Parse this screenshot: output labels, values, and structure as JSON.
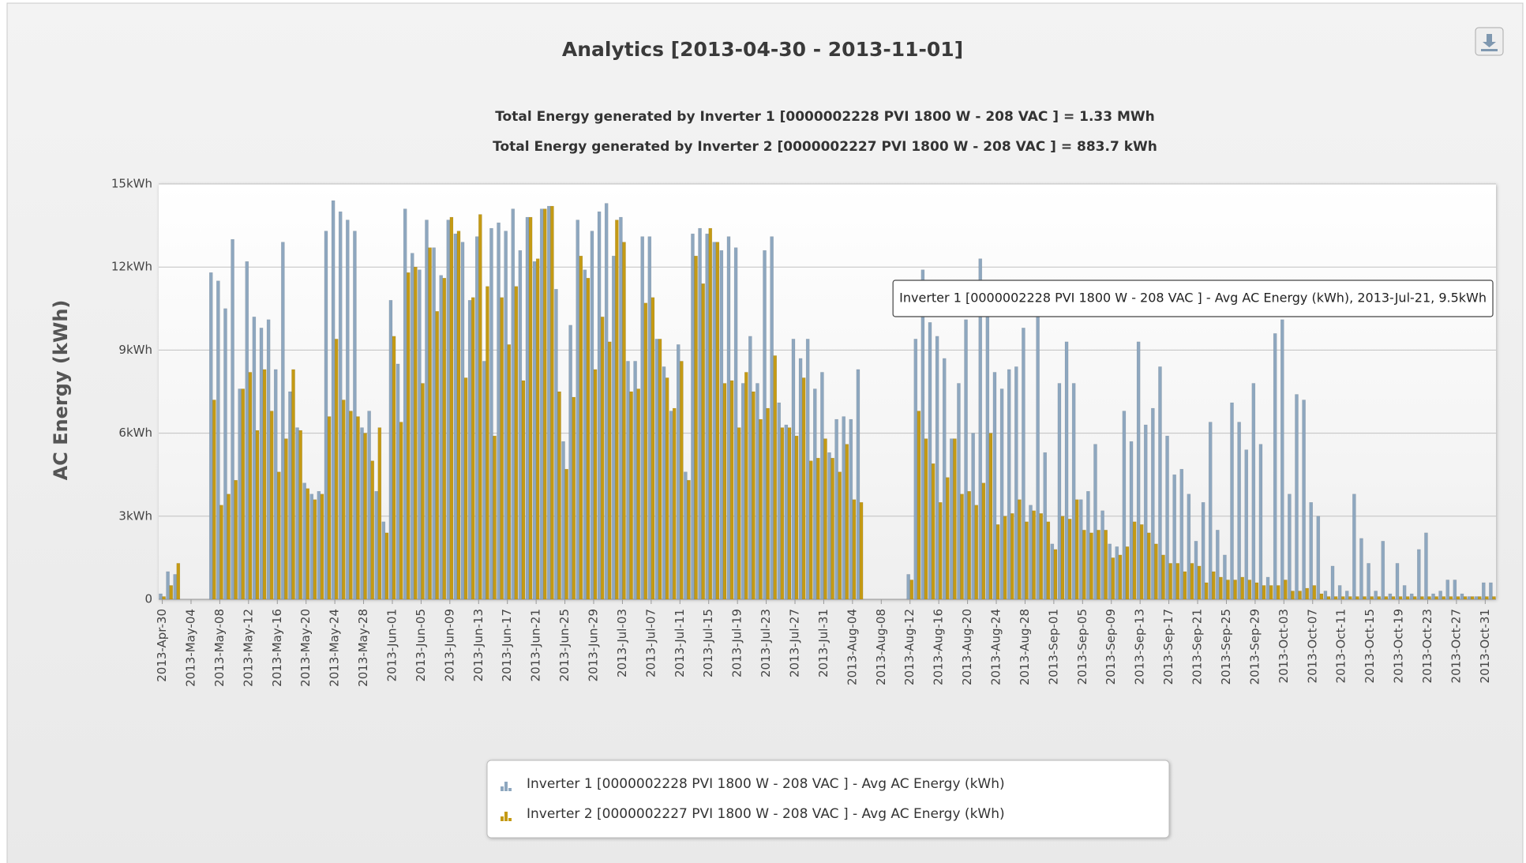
{
  "chart_data": {
    "type": "bar",
    "title": "Analytics [2013-04-30 - 2013-11-01]",
    "subtitle": [
      "Total Energy generated by Inverter 1 [0000002228 PVI 1800 W - 208 VAC ] = 1.33 MWh",
      "Total Energy generated by Inverter 2 [0000002227 PVI 1800 W - 208 VAC ] = 883.7 kWh"
    ],
    "y_label": "AC Energy (kWh)",
    "tooltip": "Inverter 1 [0000002228 PVI 1800 W - 208 VAC ] - Avg AC Energy (kWh), 2013-Jul-21, 9.5kWh",
    "ylim": [
      0,
      15
    ],
    "yticks": [
      0,
      {
        "value": 3,
        "label": "3kWh"
      },
      {
        "value": 6,
        "label": "6kWh"
      },
      {
        "value": 9,
        "label": "9kWh"
      },
      {
        "value": 12,
        "label": "12kWh"
      },
      {
        "value": 15,
        "label": "15kWh"
      }
    ],
    "grid": true,
    "legend": "bottom",
    "categories": [
      "2013-Apr-30",
      null,
      null,
      null,
      "2013-May-04",
      null,
      null,
      null,
      "2013-May-08",
      null,
      null,
      null,
      "2013-May-12",
      null,
      null,
      null,
      "2013-May-16",
      null,
      null,
      null,
      "2013-May-20",
      null,
      null,
      null,
      "2013-May-24",
      null,
      null,
      null,
      "2013-May-28",
      null,
      null,
      null,
      "2013-Jun-01",
      null,
      null,
      null,
      "2013-Jun-05",
      null,
      null,
      null,
      "2013-Jun-09",
      null,
      null,
      null,
      "2013-Jun-13",
      null,
      null,
      null,
      "2013-Jun-17",
      null,
      null,
      null,
      "2013-Jun-21",
      null,
      null,
      null,
      "2013-Jun-25",
      null,
      null,
      null,
      "2013-Jun-29",
      null,
      null,
      null,
      "2013-Jul-03",
      null,
      null,
      null,
      "2013-Jul-07",
      null,
      null,
      null,
      "2013-Jul-11",
      null,
      null,
      null,
      "2013-Jul-15",
      null,
      null,
      null,
      "2013-Jul-19",
      null,
      null,
      null,
      "2013-Jul-23",
      null,
      null,
      null,
      "2013-Jul-27",
      null,
      null,
      null,
      "2013-Jul-31",
      null,
      null,
      null,
      "2013-Aug-04",
      null,
      null,
      null,
      "2013-Aug-08",
      null,
      null,
      null,
      "2013-Aug-12",
      null,
      null,
      null,
      "2013-Aug-16",
      null,
      null,
      null,
      "2013-Aug-20",
      null,
      null,
      null,
      "2013-Aug-24",
      null,
      null,
      null,
      "2013-Aug-28",
      null,
      null,
      null,
      "2013-Sep-01",
      null,
      null,
      null,
      "2013-Sep-05",
      null,
      null,
      null,
      "2013-Sep-09",
      null,
      null,
      null,
      "2013-Sep-13",
      null,
      null,
      null,
      "2013-Sep-17",
      null,
      null,
      null,
      "2013-Sep-21",
      null,
      null,
      null,
      "2013-Sep-25",
      null,
      null,
      null,
      "2013-Sep-29",
      null,
      null,
      null,
      "2013-Oct-03",
      null,
      null,
      null,
      "2013-Oct-07",
      null,
      null,
      null,
      "2013-Oct-11",
      null,
      null,
      null,
      "2013-Oct-15",
      null,
      null,
      null,
      "2013-Oct-19",
      null,
      null,
      null,
      "2013-Oct-23",
      null,
      null,
      null,
      "2013-Oct-27",
      null,
      null,
      null,
      "2013-Oct-31",
      null
    ],
    "series": [
      {
        "name": "Inverter 1 [0000002228 PVI 1800 W - 208 VAC ] - Avg AC Energy (kWh)",
        "color": "#8ea7bf",
        "values": [
          0.2,
          1.0,
          0.9,
          null,
          null,
          null,
          null,
          11.8,
          11.5,
          10.5,
          13.0,
          7.6,
          12.2,
          10.2,
          9.8,
          10.1,
          8.3,
          12.9,
          7.5,
          6.2,
          4.2,
          3.8,
          3.9,
          13.3,
          14.4,
          14.0,
          13.7,
          13.3,
          6.2,
          6.8,
          3.9,
          2.8,
          10.8,
          8.5,
          14.1,
          12.5,
          11.9,
          13.7,
          12.7,
          11.7,
          13.7,
          13.2,
          12.9,
          10.8,
          13.1,
          8.6,
          13.4,
          13.6,
          13.3,
          14.1,
          12.6,
          13.8,
          12.2,
          14.1,
          14.2,
          11.2,
          5.7,
          9.9,
          13.7,
          11.9,
          13.3,
          14.0,
          14.3,
          12.4,
          13.8,
          8.6,
          8.6,
          13.1,
          13.1,
          9.4,
          8.4,
          6.8,
          9.2,
          4.6,
          13.2,
          13.4,
          13.2,
          12.9,
          12.6,
          13.1,
          12.7,
          7.8,
          9.5,
          7.8,
          12.6,
          13.1,
          7.1,
          6.3,
          9.4,
          8.7,
          9.4,
          7.6,
          8.2,
          5.3,
          6.5,
          6.6,
          6.5,
          8.3,
          null,
          null,
          null,
          null,
          null,
          null,
          0.9,
          9.4,
          11.9,
          10.0,
          9.5,
          8.7,
          5.8,
          7.8,
          10.1,
          6.0,
          12.3,
          10.3,
          8.2,
          7.6,
          8.3,
          8.4,
          9.8,
          3.4,
          10.2,
          5.3,
          2.0,
          7.8,
          9.3,
          7.8,
          3.6,
          3.9,
          5.6,
          3.2,
          2.0,
          1.9,
          6.8,
          5.7,
          9.3,
          6.3,
          6.9,
          8.4,
          5.9,
          4.5,
          4.7,
          3.8,
          2.1,
          3.5,
          6.4,
          2.5,
          1.6,
          7.1,
          6.4,
          5.4,
          7.8,
          5.6,
          0.8,
          9.6,
          10.1,
          3.8,
          7.4,
          7.2,
          3.5,
          3.0,
          0.3,
          1.2,
          0.5,
          0.3,
          3.8,
          2.2,
          1.3,
          0.3,
          2.1,
          0.2,
          1.3,
          0.5,
          0.2,
          1.8,
          2.4,
          0.2,
          0.3,
          0.7,
          0.7,
          0.2,
          0.1,
          0.1,
          0.6,
          0.6
        ]
      },
      {
        "name": "Inverter 2 [0000002227 PVI 1800 W - 208 VAC ] - Avg AC Energy (kWh)",
        "color": "#c49a14",
        "values": [
          0.1,
          0.5,
          1.3,
          null,
          null,
          null,
          null,
          7.2,
          3.4,
          3.8,
          4.3,
          7.6,
          8.2,
          6.1,
          8.3,
          6.8,
          4.6,
          5.8,
          8.3,
          6.1,
          4.0,
          3.6,
          3.8,
          6.6,
          9.4,
          7.2,
          6.8,
          6.6,
          6.0,
          5.0,
          6.2,
          2.4,
          9.5,
          6.4,
          11.8,
          12.0,
          7.8,
          12.7,
          10.4,
          11.6,
          13.8,
          13.3,
          8.0,
          10.9,
          13.9,
          11.3,
          5.9,
          10.9,
          9.2,
          11.3,
          7.9,
          13.8,
          12.3,
          14.1,
          14.2,
          7.5,
          4.7,
          7.3,
          12.4,
          11.6,
          8.3,
          10.2,
          9.3,
          13.7,
          12.9,
          7.5,
          7.6,
          10.7,
          10.9,
          9.4,
          8.0,
          6.9,
          8.6,
          4.3,
          12.4,
          11.4,
          13.4,
          12.9,
          7.8,
          7.9,
          6.2,
          8.2,
          7.5,
          6.5,
          6.9,
          8.8,
          6.2,
          6.2,
          5.9,
          8.0,
          5.0,
          5.1,
          5.8,
          5.1,
          4.6,
          5.6,
          3.6,
          3.5,
          null,
          null,
          null,
          null,
          null,
          null,
          0.7,
          6.8,
          5.8,
          4.9,
          3.5,
          4.4,
          5.8,
          3.8,
          3.9,
          3.4,
          4.2,
          6.0,
          2.7,
          3.0,
          3.1,
          3.6,
          2.8,
          3.2,
          3.1,
          2.8,
          1.8,
          3.0,
          2.9,
          3.6,
          2.5,
          2.4,
          2.5,
          2.5,
          1.5,
          1.6,
          1.9,
          2.8,
          2.7,
          2.4,
          2.0,
          1.6,
          1.3,
          1.3,
          1.0,
          1.3,
          1.2,
          0.6,
          1.0,
          0.8,
          0.7,
          0.7,
          0.8,
          0.7,
          0.6,
          0.5,
          0.5,
          0.5,
          0.7,
          0.3,
          0.3,
          0.4,
          0.5,
          0.2,
          0.1,
          0.1,
          0.1,
          0.1,
          0.1,
          0.1,
          0.1,
          0.1,
          0.1,
          0.1,
          0.1,
          0.1,
          0.1,
          0.1,
          0.1,
          0.1,
          0.1,
          0.1,
          0.1,
          0.1,
          0.1,
          0.1,
          0.1,
          0.1
        ]
      }
    ]
  }
}
